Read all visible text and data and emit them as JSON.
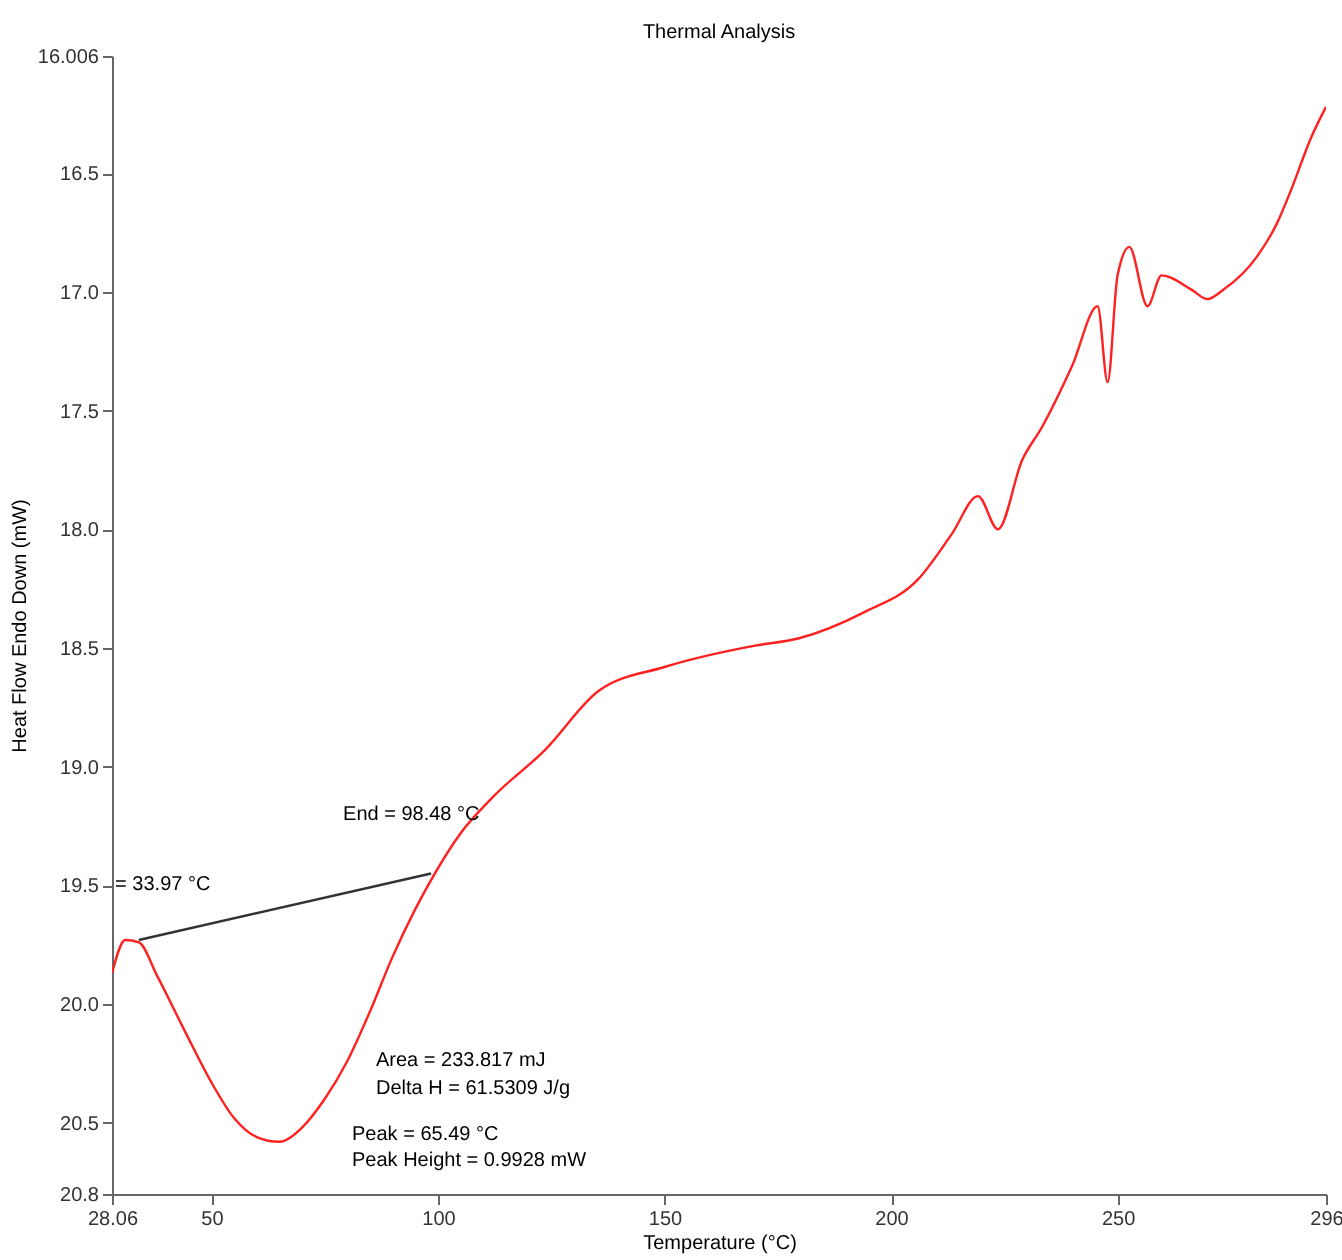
{
  "chart_data": {
    "type": "line",
    "title": "Thermal Analysis",
    "xlabel": "Temperature (°C)",
    "ylabel": "Heat Flow Endo Down (mW)",
    "xlim": [
      28.06,
      296
    ],
    "xticks": [
      28.06,
      50,
      100,
      150,
      200,
      250,
      296
    ],
    "ylim": [
      20.8,
      16.006
    ],
    "yticks": [
      16.006,
      16.5,
      {
        "value": 17,
        "label": "17.0"
      },
      17.5,
      {
        "value": 18,
        "label": "18.0"
      },
      18.5,
      {
        "value": 19,
        "label": "19.0"
      },
      19.5,
      {
        "value": 20,
        "label": "20.0"
      },
      20.5,
      20.8
    ],
    "grid": false,
    "marker": "none",
    "line_style": "solid",
    "series": [
      {
        "color": "#ff2020",
        "x": [
          28.06,
          31,
          34,
          38,
          44.3,
          50,
          55,
          60,
          65,
          70,
          75,
          80,
          84.8,
          90,
          95,
          99.3,
          105,
          112,
          123.6,
          135.5,
          150,
          170,
          179.5,
          194,
          206,
          213.4,
          219.2,
          223.6,
          228.9,
          233.3,
          240,
          245.6,
          247.8,
          250,
          252.6,
          256.6,
          259.7,
          266.3,
          269.8,
          273.4,
          280.8,
          285.2,
          288.3,
          292.7,
          296
        ],
        "values": [
          19.87,
          19.73,
          19.74,
          19.88,
          20.12,
          20.33,
          20.48,
          20.56,
          20.58,
          20.52,
          20.4,
          20.24,
          20.04,
          19.8,
          19.6,
          19.45,
          19.28,
          19.13,
          18.93,
          18.68,
          18.58,
          18.49,
          18.46,
          18.35,
          18.21,
          18.02,
          17.86,
          18.0,
          17.71,
          17.57,
          17.31,
          17.06,
          17.38,
          16.93,
          16.81,
          17.06,
          16.93,
          16.99,
          17.03,
          16.99,
          16.85,
          16.71,
          16.57,
          16.35,
          16.22
        ]
      },
      {
        "type": "line",
        "color": "#333333",
        "x": [
          33.97,
          98.48
        ],
        "values": [
          19.73,
          19.45
        ]
      }
    ],
    "annotations": [
      {
        "text": "End = 98.48 °C",
        "x": 98.48,
        "y": 19.45
      },
      {
        "text": "= 33.97 °C",
        "x": 33.97,
        "y": 19.73
      },
      "Area = 233.817 mJ",
      "Delta H = 61.5309 J/g",
      "Peak = 65.49 °C",
      "Peak Height = 0.9928 mW"
    ]
  }
}
